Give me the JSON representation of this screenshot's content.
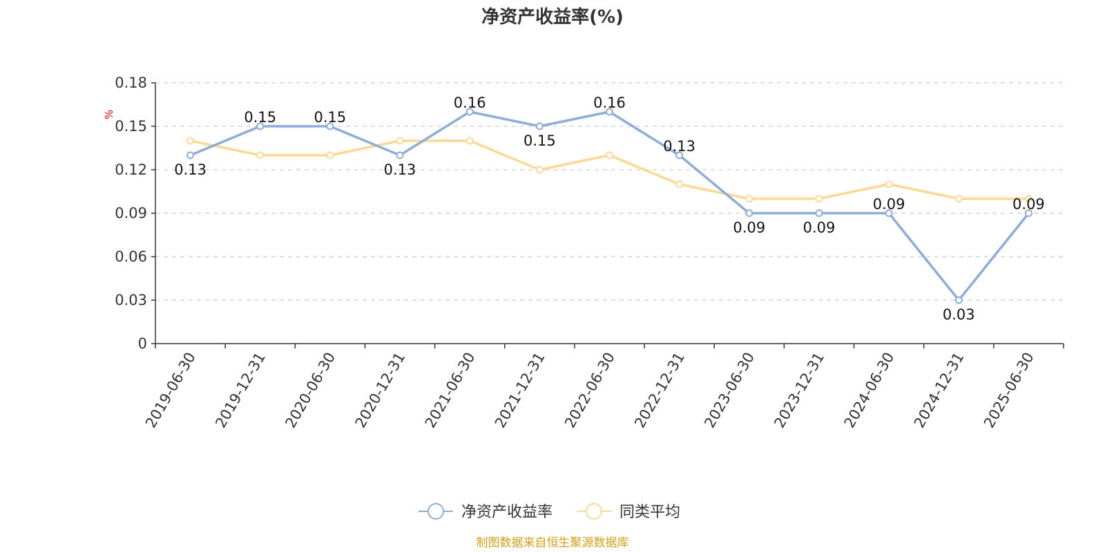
{
  "chart_data": {
    "type": "line",
    "title": "净资产收益率(%)",
    "unit": "%",
    "categories": [
      "2019-06-30",
      "2019-12-31",
      "2020-06-30",
      "2020-12-31",
      "2021-06-30",
      "2021-12-31",
      "2022-06-30",
      "2022-12-31",
      "2023-06-30",
      "2023-12-31",
      "2024-06-30",
      "2024-12-31",
      "2025-06-30"
    ],
    "ylim": [
      0,
      0.18
    ],
    "yticks": [
      "0",
      "0.03",
      "0.06",
      "0.09",
      "0.12",
      "0.15",
      "0.18"
    ],
    "grid": true,
    "legend_position": "bottom",
    "series": [
      {
        "name": "净资产收益率",
        "color": "#8eacd8",
        "values": [
          0.13,
          0.15,
          0.15,
          0.13,
          0.16,
          0.15,
          0.16,
          0.13,
          0.09,
          0.09,
          0.09,
          0.03,
          0.09
        ],
        "labels": [
          "0.13",
          "0.15",
          "0.15",
          "0.13",
          "0.16",
          "0.15",
          "0.16",
          "0.13",
          "0.09",
          "0.09",
          "0.09",
          "0.03",
          "0.09"
        ]
      },
      {
        "name": "同类平均",
        "color": "#fbd995",
        "values": [
          0.14,
          0.13,
          0.13,
          0.14,
          0.14,
          0.12,
          0.13,
          0.11,
          0.1,
          0.1,
          0.11,
          0.1,
          0.1
        ]
      }
    ]
  },
  "source": "制图数据来自恒生聚源数据库"
}
